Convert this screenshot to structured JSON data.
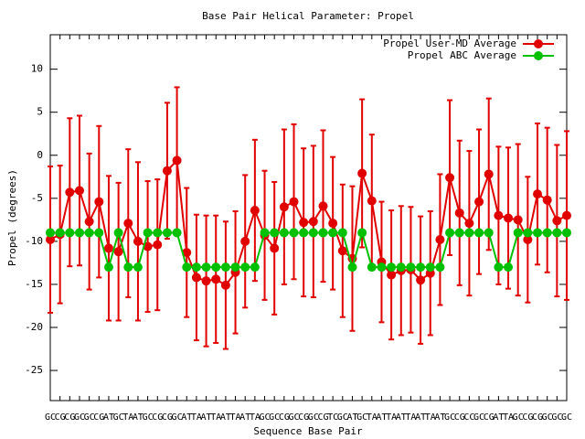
{
  "chart_data": {
    "type": "line",
    "title": "Base Pair Helical Parameter: Propel",
    "x_label": "Sequence Base Pair",
    "y_label": "Propel (degrees)",
    "categories": [
      "GC",
      "CG",
      "CG",
      "GC",
      "GC",
      "CG",
      "AT",
      "GC",
      "TA",
      "AT",
      "GC",
      "CG",
      "CG",
      "GC",
      "AT",
      "TA",
      "AT",
      "TA",
      "AT",
      "TA",
      "AT",
      "TA",
      "GC",
      "GC",
      "CG",
      "GC",
      "CG",
      "GC",
      "CG",
      "TC",
      "GC",
      "AT",
      "GC",
      "TA",
      "AT",
      "TA",
      "AT",
      "TA",
      "AT",
      "TA",
      "AT",
      "GC",
      "CG",
      "CC",
      "GC",
      "CG",
      "AT",
      "TA",
      "GC",
      "CG",
      "CG",
      "GC",
      "GC",
      "GC"
    ],
    "series": [
      {
        "name": "Propel User-MD Average",
        "color": "#e00000",
        "values": [
          -9.8,
          -9.2,
          -4.3,
          -4.1,
          -7.7,
          -5.4,
          -10.8,
          -11.2,
          -7.9,
          -10,
          -10.6,
          -10.4,
          -1.8,
          -0.6,
          -11.3,
          -14.2,
          -14.6,
          -14.4,
          -15.1,
          -13.6,
          -10,
          -6.4,
          -9.3,
          -10.8,
          -6,
          -5.4,
          -7.8,
          -7.7,
          -5.9,
          -7.9,
          -11.1,
          -12,
          -2.1,
          -5.3,
          -12.4,
          -13.9,
          -13.4,
          -13.3,
          -14.5,
          -13.7,
          -9.8,
          -2.6,
          -6.7,
          -7.9,
          -5.4,
          -2.2,
          -7,
          -7.3,
          -7.5,
          -9.8,
          -4.5,
          -5.2,
          -7.6,
          -7
        ],
        "errors": [
          8.5,
          8,
          8.6,
          8.7,
          7.9,
          8.8,
          8.4,
          8,
          8.6,
          9.2,
          7.6,
          7.6,
          7.9,
          8.5,
          7.5,
          7.3,
          7.6,
          7.4,
          7.4,
          7.1,
          7.7,
          8.2,
          7.5,
          7.7,
          9,
          9,
          8.6,
          8.8,
          8.8,
          7.7,
          7.7,
          8.4,
          8.6,
          7.7,
          7,
          7.5,
          7.5,
          7.3,
          7.4,
          7.2,
          7.6,
          9,
          8.4,
          8.4,
          8.4,
          8.8,
          8,
          8.2,
          8.8,
          7.3,
          8.2,
          8.4,
          8.8,
          9.8
        ]
      },
      {
        "name": "Propel ABC Average",
        "color": "#00c000",
        "values": [
          -9,
          -9,
          -9,
          -9,
          -9,
          -9,
          -13,
          -9,
          -13,
          -13,
          -9,
          -9,
          -9,
          -9,
          -13,
          -13,
          -13,
          -13,
          -13,
          -13,
          -13,
          -13,
          -9,
          -9,
          -9,
          -9,
          -9,
          -9,
          -9,
          -9,
          -9,
          -13,
          -9,
          -13,
          -13,
          -13,
          -13,
          -13,
          -13,
          -13,
          -13,
          -9,
          -9,
          -9,
          -9,
          -9,
          -13,
          -13,
          -9,
          -9,
          -9,
          -9,
          -9,
          -9
        ]
      }
    ],
    "ylim": [
      -28.5,
      14
    ],
    "yticks": [
      10,
      5,
      0,
      -5,
      -10,
      -15,
      -20,
      -25
    ],
    "legend": "top-right"
  }
}
